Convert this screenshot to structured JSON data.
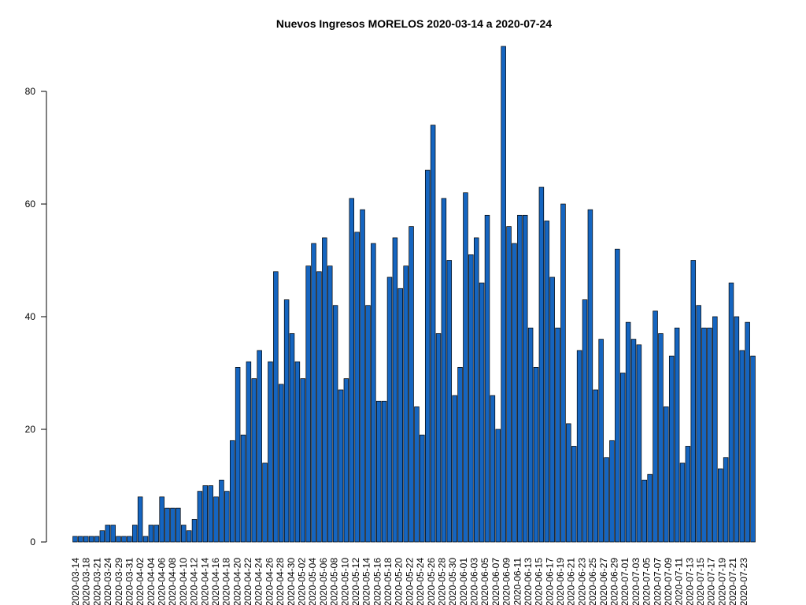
{
  "chart_data": {
    "type": "bar",
    "title": "Nuevos Ingresos MORELOS 2020-03-14 a 2020-07-24",
    "xlabel": "",
    "ylabel": "",
    "ylim": [
      0,
      88
    ],
    "yticks": [
      0,
      20,
      40,
      60,
      80
    ],
    "xtick_labels": [
      "2020-03-14",
      "2020-03-18",
      "2020-03-21",
      "2020-03-24",
      "2020-03-29",
      "2020-03-31",
      "2020-04-02",
      "2020-04-04",
      "2020-04-06",
      "2020-04-08",
      "2020-04-10",
      "2020-04-12",
      "2020-04-14",
      "2020-04-16",
      "2020-04-18",
      "2020-04-20",
      "2020-04-22",
      "2020-04-24",
      "2020-04-26",
      "2020-04-28",
      "2020-04-30",
      "2020-05-02",
      "2020-05-04",
      "2020-05-06",
      "2020-05-08",
      "2020-05-10",
      "2020-05-12",
      "2020-05-14",
      "2020-05-16",
      "2020-05-18",
      "2020-05-20",
      "2020-05-22",
      "2020-05-24",
      "2020-05-26",
      "2020-05-28",
      "2020-05-30",
      "2020-06-01",
      "2020-06-03",
      "2020-06-05",
      "2020-06-07",
      "2020-06-09",
      "2020-06-11",
      "2020-06-13",
      "2020-06-15",
      "2020-06-17",
      "2020-06-19",
      "2020-06-21",
      "2020-06-23",
      "2020-06-25",
      "2020-06-27",
      "2020-06-29",
      "2020-07-01",
      "2020-07-03",
      "2020-07-05",
      "2020-07-07",
      "2020-07-09",
      "2020-07-11",
      "2020-07-13",
      "2020-07-15",
      "2020-07-17",
      "2020-07-19",
      "2020-07-21",
      "2020-07-23"
    ],
    "bar_color": "#1565c0",
    "values": [
      1,
      1,
      1,
      1,
      1,
      2,
      3,
      3,
      1,
      1,
      1,
      3,
      8,
      1,
      3,
      3,
      8,
      6,
      6,
      6,
      3,
      2,
      4,
      9,
      10,
      10,
      8,
      11,
      9,
      18,
      31,
      19,
      32,
      29,
      34,
      14,
      32,
      48,
      28,
      43,
      37,
      32,
      29,
      49,
      53,
      48,
      54,
      49,
      42,
      27,
      29,
      61,
      55,
      59,
      42,
      53,
      25,
      25,
      47,
      54,
      45,
      49,
      56,
      24,
      19,
      66,
      74,
      37,
      61,
      50,
      26,
      31,
      62,
      51,
      54,
      46,
      58,
      26,
      20,
      88,
      56,
      53,
      58,
      58,
      38,
      31,
      63,
      57,
      47,
      38,
      60,
      21,
      17,
      34,
      43,
      59,
      27,
      36,
      15,
      18,
      52,
      30,
      39,
      36,
      35,
      11,
      12,
      41,
      37,
      24,
      33,
      38,
      14,
      17,
      50,
      42,
      38,
      38,
      40,
      13,
      15,
      46,
      40,
      34,
      39,
      33
    ],
    "grid": false,
    "legend": "none"
  }
}
